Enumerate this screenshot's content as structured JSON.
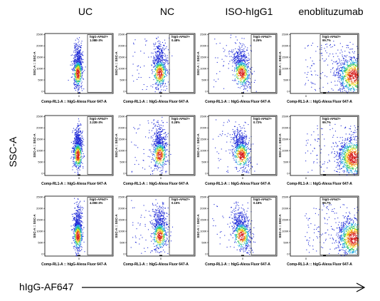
{
  "chart_data": {
    "type": "scatter",
    "subtype": "flow-cytometry-density-plot-grid",
    "columns": [
      "UC",
      "NC",
      "ISO-hIgG1",
      "enoblituzumab"
    ],
    "rows": 3,
    "ylabel": "SSC-A",
    "xlabel": "hIgG-AF647",
    "panel_ylabel": "SSC-A :: SSC-A",
    "panel_xlabel": "Comp-RL1-A :: hIgG-Alexa Fluor 647-A",
    "gate_name": "hIgG-AF647+",
    "yticks": [
      "0",
      "50K",
      "100K",
      "150K",
      "200K",
      "250K"
    ],
    "xticks": [
      "0"
    ],
    "gate_values": [
      [
        "1.08E-3%",
        "0.48%",
        "0.25%",
        "99.7%"
      ],
      [
        "2.22E-3%",
        "0.28%",
        "0.72%",
        "99.7%"
      ],
      [
        "4.00E-3%",
        "0.15%",
        "0.18%",
        "99.7%"
      ]
    ],
    "colorscale": [
      "#1f2bd6",
      "#1fa7e0",
      "#33c75a",
      "#f0e02a",
      "#f07a1a",
      "#d61f1f"
    ]
  }
}
